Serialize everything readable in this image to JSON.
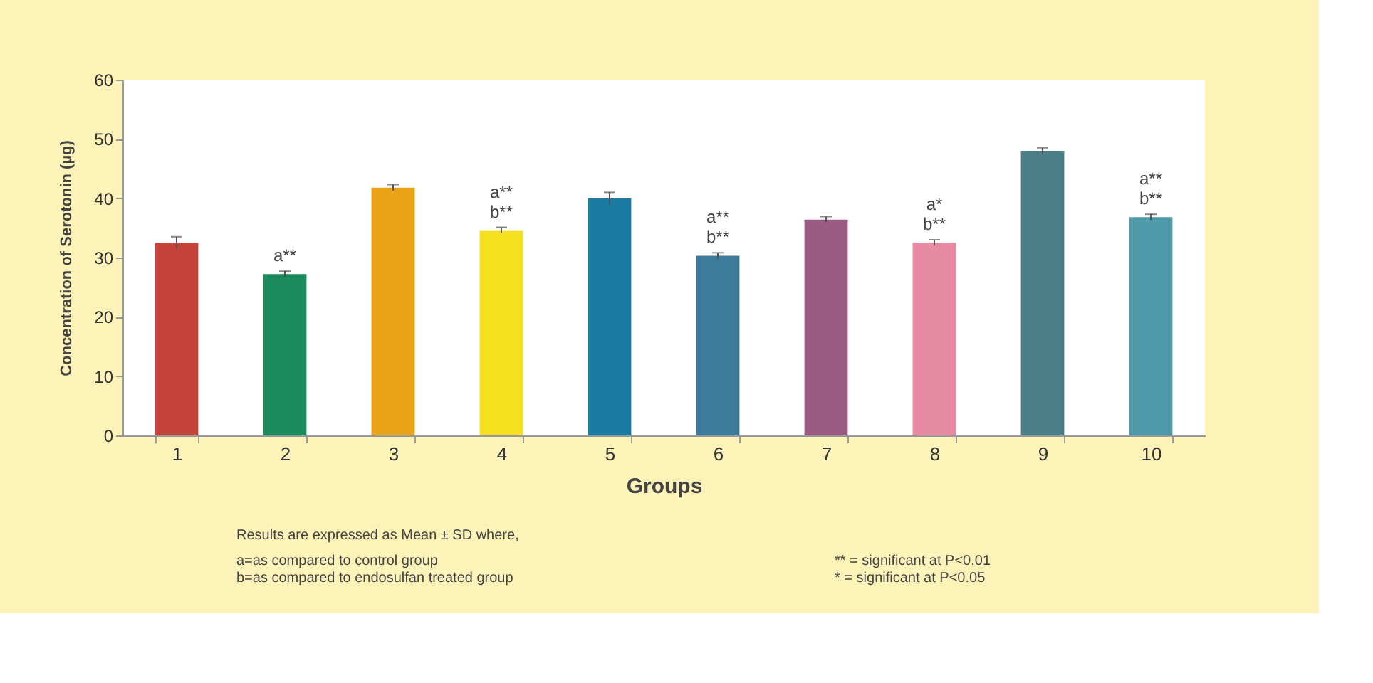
{
  "chart_data": {
    "type": "bar",
    "xlabel": "Groups",
    "ylabel": "Concentration of Serotonin (µg)",
    "categories": [
      "1",
      "2",
      "3",
      "4",
      "5",
      "6",
      "7",
      "8",
      "9",
      "10"
    ],
    "values": [
      32.5,
      27.2,
      41.8,
      34.6,
      40.0,
      30.3,
      36.4,
      32.5,
      48.0,
      36.8
    ],
    "errors": [
      1.0,
      0.5,
      0.5,
      0.5,
      1.0,
      0.5,
      0.5,
      0.5,
      0.5,
      0.5
    ],
    "colors": [
      "#c4423a",
      "#1b8a5c",
      "#e8a317",
      "#f4e01c",
      "#1a7aa0",
      "#3d7b9c",
      "#9a5a82",
      "#e68ba3",
      "#4b7f87",
      "#4f9aa8"
    ],
    "ylim": [
      0,
      60
    ],
    "yticks": [
      0,
      10,
      20,
      30,
      40,
      50,
      60
    ],
    "grid": false,
    "annotations": [
      "a**",
      "a**",
      "b**",
      "a**",
      "b**",
      "a*",
      "b**",
      "a**",
      "b**",
      "Results are expressed as Mean ± SD where,",
      "a=as compared to control group",
      "b=as compared to endosulfan treated group",
      "** = significant at P<0.01",
      "* = significant at P<0.05"
    ]
  }
}
